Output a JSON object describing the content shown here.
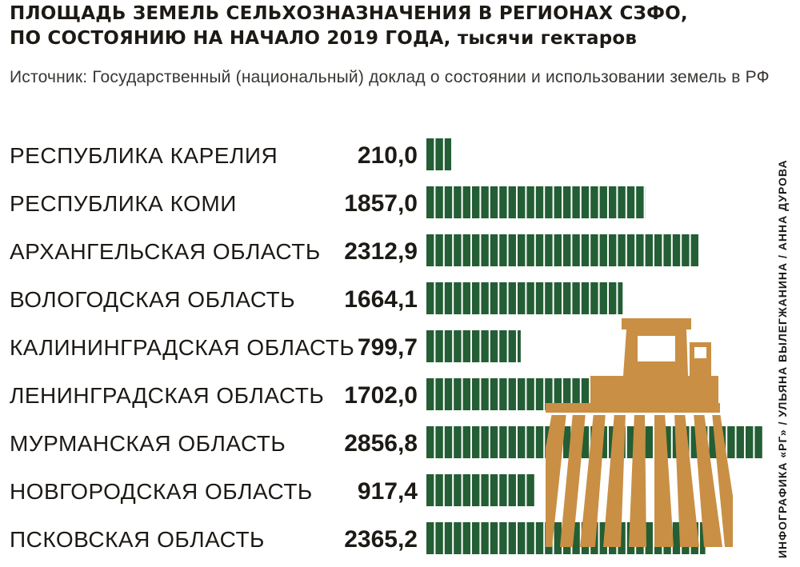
{
  "title_line1": "ПЛОЩАДЬ ЗЕМЕЛЬ СЕЛЬХОЗНАЗНАЧЕНИЯ В РЕГИОНАХ СЗФО,",
  "title_line2": "ПО СОСТОЯНИЮ НА НАЧАЛО 2019 ГОДА,",
  "title_unit": "тысячи гектаров",
  "source": "Источник: Государственный (национальный) доклад о состоянии и использовании земель в РФ",
  "credit": "ИНФОГРАФИКА «РГ» / УЛЬЯНА ВЫЛЕГЖАНИНА / АННА ДУРОВА",
  "colors": {
    "bar": "#235e34",
    "tractor": "#c98f44",
    "text": "#1d1a16"
  },
  "icon": "tractor-icon",
  "chart_data": {
    "type": "bar",
    "orientation": "horizontal",
    "categories": [
      "РЕСПУБЛИКА КАРЕЛИЯ",
      "РЕСПУБЛИКА КОМИ",
      "АРХАНГЕЛЬСКАЯ ОБЛАСТЬ",
      "ВОЛОГОДСКАЯ ОБЛАСТЬ",
      "КАЛИНИНГРАДСКАЯ ОБЛАСТЬ",
      "ЛЕНИНГРАДСКАЯ ОБЛАСТЬ",
      "МУРМАНСКАЯ ОБЛАСТЬ",
      "НОВГОРОДСКАЯ ОБЛАСТЬ",
      "ПСКОВСКАЯ ОБЛАСТЬ"
    ],
    "values": [
      210.0,
      1857.0,
      2312.9,
      1664.1,
      799.7,
      1702.0,
      2856.8,
      917.4,
      2365.2
    ],
    "labels": [
      "210,0",
      "1857,0",
      "2312,9",
      "1664,1",
      "799,7",
      "1702,0",
      "2856,8",
      "917,4",
      "2365,2"
    ],
    "grid": false,
    "legend": "none"
  }
}
